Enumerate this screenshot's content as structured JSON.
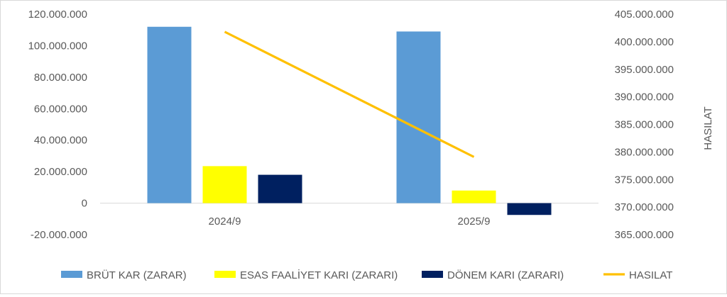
{
  "chart_data": {
    "type": "bar",
    "categories": [
      "2024/9",
      "2025/9"
    ],
    "series": [
      {
        "name": "BRÜT KAR (ZARAR)",
        "type": "bar",
        "axis": "left",
        "color": "#5b9bd5",
        "values": [
          112000000,
          109000000
        ]
      },
      {
        "name": "ESAS FAALİYET KARI (ZARARI)",
        "type": "bar",
        "axis": "left",
        "color": "#ffff00",
        "values": [
          23500000,
          8000000
        ]
      },
      {
        "name": "DÖNEM KARI (ZARARI)",
        "type": "bar",
        "axis": "left",
        "color": "#002060",
        "values": [
          18000000,
          -7500000
        ]
      },
      {
        "name": "HASILAT",
        "type": "line",
        "axis": "right",
        "color": "#ffc000",
        "values": [
          401800000,
          379100000
        ]
      }
    ],
    "left_axis": {
      "min": -20000000,
      "max": 120000000,
      "step": 20000000,
      "tick_labels": [
        "-20.000.000",
        "0",
        "20.000.000",
        "40.000.000",
        "60.000.000",
        "80.000.000",
        "100.000.000",
        "120.000.000"
      ]
    },
    "right_axis": {
      "min": 365000000,
      "max": 405000000,
      "step": 5000000,
      "title": "HASILAT",
      "tick_labels": [
        "365.000.000",
        "370.000.000",
        "375.000.000",
        "380.000.000",
        "385.000.000",
        "390.000.000",
        "395.000.000",
        "400.000.000",
        "405.000.000"
      ]
    },
    "grid": false,
    "legend": "bottom"
  }
}
